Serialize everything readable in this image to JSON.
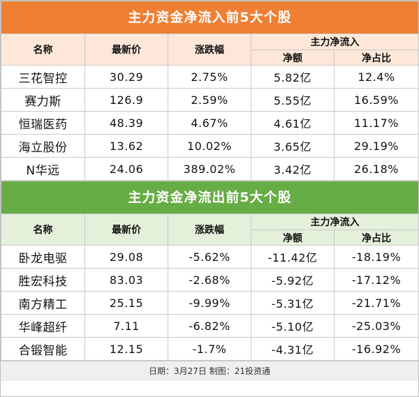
{
  "inflow": {
    "title": "主力资金净流入前5大个股",
    "headers": {
      "name": "名称",
      "price": "最新价",
      "change": "涨跌幅",
      "group": "主力净流入",
      "net": "净额",
      "ratio": "净占比"
    },
    "rows": [
      {
        "name": "三花智控",
        "price": "30.29",
        "change": "2.75%",
        "net": "5.82亿",
        "ratio": "12.4%"
      },
      {
        "name": "赛力斯",
        "price": "126.9",
        "change": "2.59%",
        "net": "5.55亿",
        "ratio": "16.59%"
      },
      {
        "name": "恒瑞医药",
        "price": "48.39",
        "change": "4.67%",
        "net": "4.61亿",
        "ratio": "11.17%"
      },
      {
        "name": "海立股份",
        "price": "13.62",
        "change": "10.02%",
        "net": "3.65亿",
        "ratio": "29.19%"
      },
      {
        "name": "N华远",
        "price": "24.06",
        "change": "389.02%",
        "net": "3.42亿",
        "ratio": "26.18%"
      }
    ]
  },
  "outflow": {
    "title": "主力资金净流出前5大个股",
    "headers": {
      "name": "名称",
      "price": "最新价",
      "change": "涨跌幅",
      "group": "主力净流入",
      "net": "净额",
      "ratio": "净占比"
    },
    "rows": [
      {
        "name": "卧龙电驱",
        "price": "29.08",
        "change": "-5.62%",
        "net": "-11.42亿",
        "ratio": "-18.19%"
      },
      {
        "name": "胜宏科技",
        "price": "83.03",
        "change": "-2.68%",
        "net": "-5.92亿",
        "ratio": "-17.12%"
      },
      {
        "name": "南方精工",
        "price": "25.15",
        "change": "-9.99%",
        "net": "-5.31亿",
        "ratio": "-21.71%"
      },
      {
        "name": "华峰超纤",
        "price": "7.11",
        "change": "-6.82%",
        "net": "-5.10亿",
        "ratio": "-25.03%"
      },
      {
        "name": "合锻智能",
        "price": "12.15",
        "change": "-1.7%",
        "net": "-4.31亿",
        "ratio": "-16.92%"
      }
    ]
  },
  "footer": "日期：3月27日 制图：21投资通",
  "colors": {
    "inflow_header": "#ef7f32",
    "outflow_header": "#66ad45"
  }
}
